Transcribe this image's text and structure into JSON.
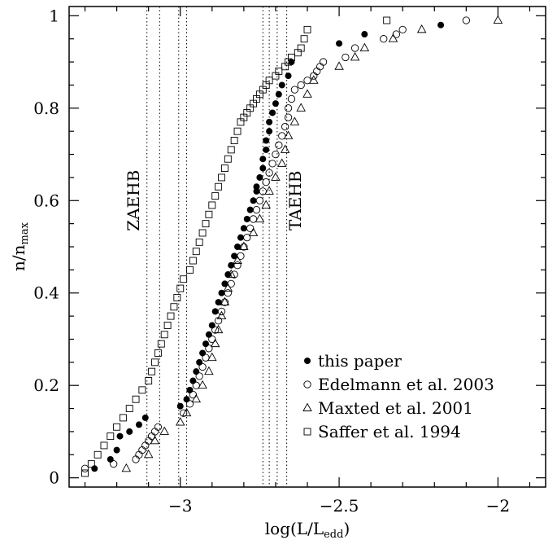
{
  "chart_data": {
    "type": "scatter",
    "xlabel": "log(L/L",
    "xlabel_sub": "edd",
    "xlabel_close": ")",
    "ylabel": "n/n",
    "ylabel_sub": "max",
    "xlim": [
      -3.35,
      -1.85
    ],
    "ylim": [
      -0.02,
      1.02
    ],
    "xticks": [
      -3,
      -2.5,
      -2
    ],
    "xtick_labels": [
      "−3",
      "−2.5",
      "−2"
    ],
    "yticks": [
      0,
      0.2,
      0.4,
      0.6,
      0.8,
      1
    ],
    "ytick_labels": [
      "0",
      "0.2",
      "0.4",
      "0.6",
      "0.8",
      "1"
    ],
    "grid": false,
    "legend_position": "bottom-right",
    "annotations": [
      {
        "text": "ZAEHB",
        "x": -3.13,
        "y": 0.6
      },
      {
        "text": "TAEHB",
        "x": -2.62,
        "y": 0.6
      }
    ],
    "vlines": [
      -3.105,
      -3.065,
      -3.005,
      -2.98,
      -2.74,
      -2.72,
      -2.695,
      -2.665
    ],
    "series": [
      {
        "name": "this paper",
        "marker": "filled-circle",
        "x": [
          -3.27,
          -3.22,
          -3.2,
          -3.19,
          -3.16,
          -3.13,
          -3.11,
          -3.0,
          -2.98,
          -2.97,
          -2.96,
          -2.95,
          -2.94,
          -2.93,
          -2.92,
          -2.91,
          -2.9,
          -2.89,
          -2.88,
          -2.87,
          -2.86,
          -2.85,
          -2.84,
          -2.83,
          -2.82,
          -2.81,
          -2.8,
          -2.79,
          -2.78,
          -2.77,
          -2.76,
          -2.76,
          -2.75,
          -2.74,
          -2.74,
          -2.73,
          -2.73,
          -2.72,
          -2.72,
          -2.71,
          -2.7,
          -2.69,
          -2.68,
          -2.66,
          -2.65,
          -2.5,
          -2.42,
          -2.18
        ],
        "y": [
          0.02,
          0.04,
          0.06,
          0.09,
          0.1,
          0.115,
          0.13,
          0.155,
          0.17,
          0.19,
          0.21,
          0.23,
          0.25,
          0.27,
          0.29,
          0.31,
          0.33,
          0.36,
          0.38,
          0.4,
          0.42,
          0.44,
          0.46,
          0.48,
          0.5,
          0.52,
          0.54,
          0.56,
          0.58,
          0.6,
          0.62,
          0.63,
          0.65,
          0.67,
          0.69,
          0.71,
          0.73,
          0.75,
          0.77,
          0.79,
          0.81,
          0.83,
          0.85,
          0.87,
          0.9,
          0.94,
          0.96,
          0.98
        ]
      },
      {
        "name": "Edelmann et al. 2003",
        "marker": "open-circle",
        "x": [
          -3.3,
          -3.21,
          -3.14,
          -3.13,
          -3.12,
          -3.11,
          -3.1,
          -3.09,
          -3.08,
          -3.07,
          -2.99,
          -2.97,
          -2.96,
          -2.95,
          -2.94,
          -2.93,
          -2.92,
          -2.91,
          -2.9,
          -2.89,
          -2.88,
          -2.87,
          -2.86,
          -2.85,
          -2.84,
          -2.83,
          -2.82,
          -2.81,
          -2.8,
          -2.79,
          -2.78,
          -2.77,
          -2.76,
          -2.75,
          -2.74,
          -2.73,
          -2.72,
          -2.71,
          -2.7,
          -2.69,
          -2.68,
          -2.67,
          -2.66,
          -2.66,
          -2.65,
          -2.64,
          -2.62,
          -2.6,
          -2.58,
          -2.57,
          -2.56,
          -2.55,
          -2.48,
          -2.45,
          -2.36,
          -2.32,
          -2.3,
          -2.1
        ],
        "y": [
          0.02,
          0.03,
          0.04,
          0.05,
          0.06,
          0.07,
          0.08,
          0.09,
          0.1,
          0.11,
          0.14,
          0.16,
          0.18,
          0.2,
          0.22,
          0.24,
          0.26,
          0.28,
          0.3,
          0.32,
          0.34,
          0.36,
          0.38,
          0.4,
          0.42,
          0.44,
          0.46,
          0.48,
          0.5,
          0.52,
          0.54,
          0.56,
          0.58,
          0.6,
          0.62,
          0.64,
          0.66,
          0.68,
          0.7,
          0.72,
          0.74,
          0.76,
          0.78,
          0.8,
          0.82,
          0.84,
          0.85,
          0.86,
          0.87,
          0.88,
          0.89,
          0.9,
          0.91,
          0.93,
          0.95,
          0.96,
          0.97,
          0.99
        ]
      },
      {
        "name": "Maxted et al. 2001",
        "marker": "open-triangle",
        "x": [
          -3.17,
          -3.1,
          -3.08,
          -3.05,
          -3.0,
          -2.98,
          -2.95,
          -2.93,
          -2.91,
          -2.9,
          -2.89,
          -2.88,
          -2.87,
          -2.86,
          -2.85,
          -2.84,
          -2.82,
          -2.8,
          -2.77,
          -2.75,
          -2.73,
          -2.72,
          -2.7,
          -2.68,
          -2.67,
          -2.66,
          -2.64,
          -2.62,
          -2.6,
          -2.58,
          -2.5,
          -2.45,
          -2.42,
          -2.33,
          -2.24,
          -2.0
        ],
        "y": [
          0.02,
          0.05,
          0.08,
          0.1,
          0.12,
          0.14,
          0.17,
          0.2,
          0.23,
          0.26,
          0.29,
          0.32,
          0.35,
          0.38,
          0.41,
          0.44,
          0.47,
          0.5,
          0.53,
          0.56,
          0.59,
          0.62,
          0.65,
          0.68,
          0.71,
          0.74,
          0.77,
          0.8,
          0.83,
          0.86,
          0.89,
          0.91,
          0.93,
          0.95,
          0.97,
          0.99
        ]
      },
      {
        "name": "Saffer et al. 1994",
        "marker": "open-square",
        "x": [
          -3.3,
          -3.28,
          -3.26,
          -3.24,
          -3.22,
          -3.2,
          -3.18,
          -3.16,
          -3.14,
          -3.12,
          -3.1,
          -3.09,
          -3.08,
          -3.07,
          -3.06,
          -3.05,
          -3.04,
          -3.03,
          -3.02,
          -3.01,
          -3.0,
          -2.99,
          -2.97,
          -2.96,
          -2.95,
          -2.94,
          -2.93,
          -2.92,
          -2.91,
          -2.9,
          -2.89,
          -2.88,
          -2.87,
          -2.86,
          -2.85,
          -2.84,
          -2.83,
          -2.82,
          -2.81,
          -2.8,
          -2.79,
          -2.78,
          -2.77,
          -2.76,
          -2.75,
          -2.74,
          -2.73,
          -2.72,
          -2.7,
          -2.69,
          -2.67,
          -2.66,
          -2.65,
          -2.63,
          -2.62,
          -2.61,
          -2.6,
          -2.35
        ],
        "y": [
          0.01,
          0.03,
          0.05,
          0.07,
          0.09,
          0.11,
          0.13,
          0.15,
          0.17,
          0.19,
          0.21,
          0.23,
          0.25,
          0.27,
          0.29,
          0.31,
          0.33,
          0.35,
          0.37,
          0.39,
          0.41,
          0.43,
          0.45,
          0.47,
          0.49,
          0.51,
          0.53,
          0.55,
          0.57,
          0.59,
          0.61,
          0.63,
          0.65,
          0.67,
          0.69,
          0.71,
          0.73,
          0.75,
          0.77,
          0.78,
          0.79,
          0.8,
          0.81,
          0.82,
          0.83,
          0.84,
          0.85,
          0.86,
          0.87,
          0.88,
          0.89,
          0.9,
          0.91,
          0.92,
          0.93,
          0.95,
          0.97,
          0.99
        ]
      }
    ]
  }
}
